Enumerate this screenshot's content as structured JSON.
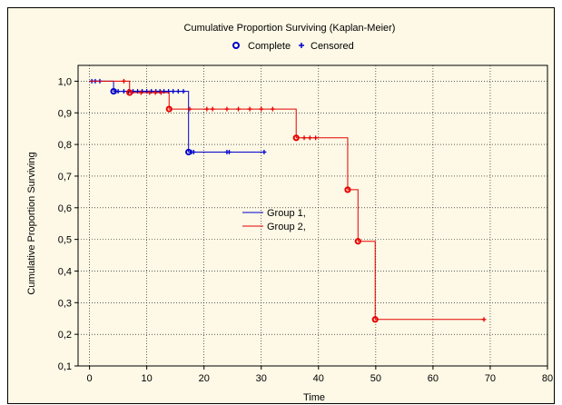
{
  "chart_data": {
    "type": "line",
    "title": "Cumulative Proportion Surviving (Kaplan-Meier)",
    "legend_top": [
      {
        "label": "Complete",
        "marker": "circle"
      },
      {
        "label": "Censored",
        "marker": "plus"
      }
    ],
    "xlabel": "Time",
    "ylabel": "Cumulative Proportion Surviving",
    "xlim": [
      -2,
      80
    ],
    "ylim": [
      0.1,
      1.05
    ],
    "xticks": [
      0,
      10,
      20,
      30,
      40,
      50,
      60,
      70,
      80
    ],
    "xtick_labels": [
      "0",
      "10",
      "20",
      "30",
      "40",
      "50",
      "60",
      "70",
      "80"
    ],
    "yticks": [
      0.1,
      0.2,
      0.3,
      0.4,
      0.5,
      0.6,
      0.7,
      0.8,
      0.9,
      1.0
    ],
    "ytick_labels": [
      "0,1",
      "0,2",
      "0,3",
      "0,4",
      "0,5",
      "0,6",
      "0,7",
      "0,8",
      "0,9",
      "1,0"
    ],
    "series": [
      {
        "name": "Group 1,",
        "color": "#0000cc",
        "steps": [
          [
            0,
            1.0
          ],
          [
            4.2,
            0.968
          ],
          [
            17.3,
            0.776
          ],
          [
            30.5,
            0.776
          ]
        ],
        "complete": [
          [
            4.2,
            0.968
          ],
          [
            17.3,
            0.776
          ]
        ],
        "censored": [
          [
            0.4,
            1.0
          ],
          [
            1.0,
            1.0
          ],
          [
            1.8,
            1.0
          ],
          [
            4.6,
            0.968
          ],
          [
            5.0,
            0.968
          ],
          [
            6.0,
            0.968
          ],
          [
            6.8,
            0.968
          ],
          [
            7.6,
            0.968
          ],
          [
            8.4,
            0.968
          ],
          [
            9.2,
            0.968
          ],
          [
            10.0,
            0.968
          ],
          [
            10.8,
            0.968
          ],
          [
            11.6,
            0.968
          ],
          [
            12.3,
            0.968
          ],
          [
            13.0,
            0.968
          ],
          [
            13.8,
            0.968
          ],
          [
            14.6,
            0.968
          ],
          [
            15.5,
            0.968
          ],
          [
            16.4,
            0.968
          ],
          [
            17.8,
            0.776
          ],
          [
            18.2,
            0.776
          ],
          [
            24.0,
            0.776
          ],
          [
            24.4,
            0.776
          ],
          [
            30.5,
            0.776
          ]
        ]
      },
      {
        "name": "Group 2,",
        "color": "#e60000",
        "steps": [
          [
            0,
            1.0
          ],
          [
            7.0,
            0.964
          ],
          [
            13.9,
            0.912
          ],
          [
            36.1,
            0.821
          ],
          [
            45.1,
            0.657
          ],
          [
            46.9,
            0.494
          ],
          [
            49.9,
            0.247
          ],
          [
            68.9,
            0.247
          ]
        ],
        "complete": [
          [
            7.0,
            0.964
          ],
          [
            13.9,
            0.912
          ],
          [
            36.1,
            0.821
          ],
          [
            45.1,
            0.657
          ],
          [
            46.9,
            0.494
          ],
          [
            49.9,
            0.247
          ]
        ],
        "censored": [
          [
            6.0,
            1.0
          ],
          [
            9.0,
            0.964
          ],
          [
            10.5,
            0.964
          ],
          [
            11.5,
            0.964
          ],
          [
            12.5,
            0.964
          ],
          [
            17.5,
            0.912
          ],
          [
            20.5,
            0.912
          ],
          [
            21.5,
            0.912
          ],
          [
            24.0,
            0.912
          ],
          [
            26.0,
            0.912
          ],
          [
            28.0,
            0.912
          ],
          [
            30.0,
            0.912
          ],
          [
            32.0,
            0.912
          ],
          [
            37.5,
            0.821
          ],
          [
            38.5,
            0.821
          ],
          [
            39.5,
            0.821
          ],
          [
            68.9,
            0.247
          ]
        ]
      }
    ],
    "inner_legend": [
      {
        "label": "Group 1,",
        "color": "#0000cc"
      },
      {
        "label": "Group 2,",
        "color": "#e60000"
      }
    ]
  }
}
